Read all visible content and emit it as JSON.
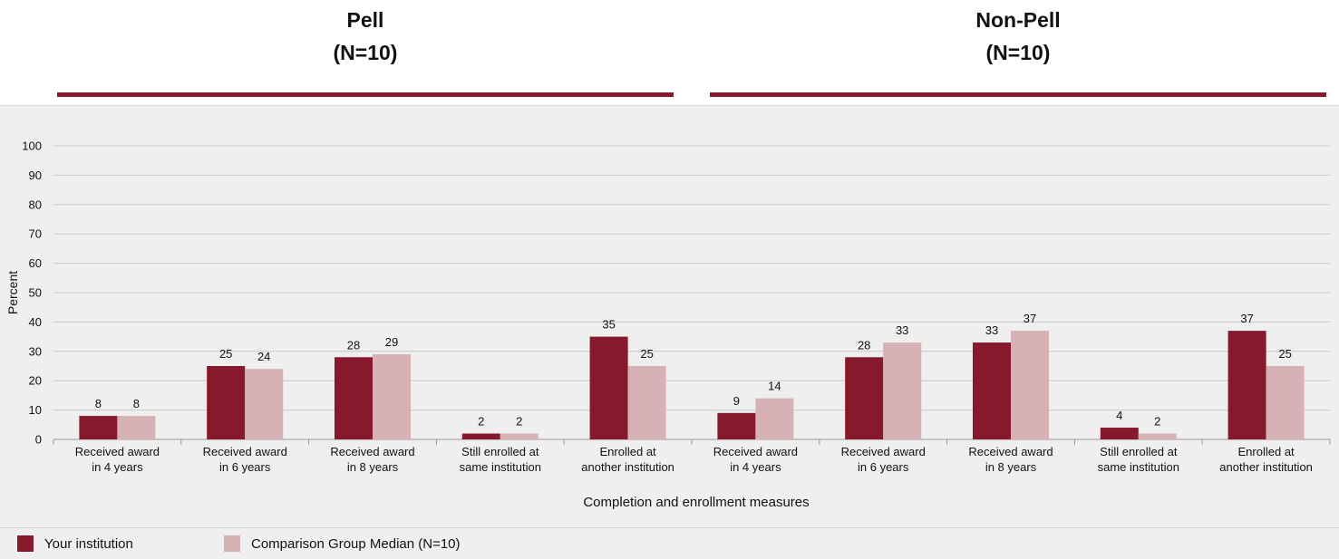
{
  "groups": [
    {
      "title": "Pell",
      "subtitle": "(N=10)"
    },
    {
      "title": "Non-Pell",
      "subtitle": "(N=10)"
    }
  ],
  "colors": {
    "institution": "#86192c",
    "comparison": "#d6b1b6",
    "rule": "#86192c"
  },
  "legend": {
    "institution": "Your institution",
    "comparison": "Comparison Group Median (N=10)"
  },
  "chart_data": {
    "type": "bar",
    "title": "",
    "xlabel": "Completion and enrollment measures",
    "ylabel": "Percent",
    "ylim": [
      0,
      100
    ],
    "yticks": [
      0,
      10,
      20,
      30,
      40,
      50,
      60,
      70,
      80,
      90,
      100
    ],
    "grid": true,
    "categories": [
      [
        "Received award",
        "in 4 years"
      ],
      [
        "Received award",
        "in 6 years"
      ],
      [
        "Received award",
        "in 8 years"
      ],
      [
        "Still enrolled at",
        "same institution"
      ],
      [
        "Enrolled at",
        "another institution"
      ],
      [
        "Received award",
        "in 4 years"
      ],
      [
        "Received award",
        "in 6 years"
      ],
      [
        "Received award",
        "in 8 years"
      ],
      [
        "Still enrolled at",
        "same institution"
      ],
      [
        "Enrolled at",
        "another institution"
      ]
    ],
    "series": [
      {
        "name": "Your institution",
        "values": [
          8,
          25,
          28,
          2,
          35,
          9,
          28,
          33,
          4,
          37
        ],
        "labels": [
          "8",
          "25",
          "28",
          "2",
          "35",
          "9",
          "28",
          "33",
          "4",
          "37"
        ]
      },
      {
        "name": "Comparison Group Median (N=10)",
        "values": [
          8,
          24,
          29,
          2,
          25,
          14,
          33,
          37,
          2,
          25
        ],
        "labels": [
          "8",
          "24",
          "29",
          "2",
          "25",
          "14",
          "33",
          "37",
          "2",
          "25"
        ]
      }
    ]
  }
}
